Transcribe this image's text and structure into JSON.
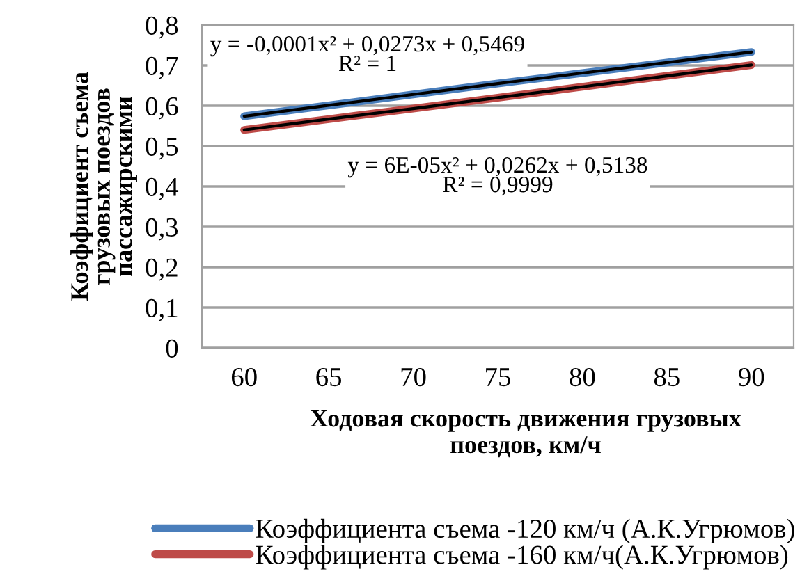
{
  "chart_data": {
    "type": "line",
    "ylabel": "Коэффициент съема\nгрузовых поездов\nпассажирскими",
    "xlabel": "Ходовая скорость движения грузовых\nпоездов, км/ч",
    "categories": [
      "60",
      "65",
      "70",
      "75",
      "80",
      "85",
      "90"
    ],
    "series": [
      {
        "name": "Коэффициента съема -120 км/ч (А.К.Угрюмов)",
        "color": "#4a7ebb",
        "values": [
          0.574,
          0.601,
          0.628,
          0.655,
          0.681,
          0.707,
          0.733
        ]
      },
      {
        "name": "Коэффициента съема -160 км/ч(А.К.Угрюмов)",
        "color": "#be4b48",
        "values": [
          0.54,
          0.567,
          0.593,
          0.62,
          0.647,
          0.674,
          0.701
        ]
      },
      {
        "color": "#000000",
        "values": [
          0.574,
          0.601,
          0.628,
          0.655,
          0.681,
          0.707,
          0.733
        ]
      },
      {
        "color": "#000000",
        "values": [
          0.54,
          0.567,
          0.593,
          0.62,
          0.647,
          0.674,
          0.701
        ]
      }
    ],
    "ylim": [
      0,
      0.8
    ],
    "yticks": [
      {
        "value": 0,
        "label": "0"
      },
      {
        "value": 0.1,
        "label": "0,1"
      },
      {
        "value": 0.2,
        "label": "0,2"
      },
      {
        "value": 0.3,
        "label": "0,3"
      },
      {
        "value": 0.4,
        "label": "0,4"
      },
      {
        "value": 0.5,
        "label": "0,5"
      },
      {
        "value": 0.6,
        "label": "0,6"
      },
      {
        "value": 0.7,
        "label": "0,7"
      },
      {
        "value": 0.8,
        "label": "0,8"
      }
    ],
    "grid": "y",
    "legend": "bottom",
    "marker": "none",
    "line_style": "solid",
    "annotations": [
      "y = -0,0001x² + 0,0273x + 0,5469\nR² = 1",
      "y = 6E-05x² + 0,0262x + 0,5138\nR² = 0,9999"
    ]
  }
}
